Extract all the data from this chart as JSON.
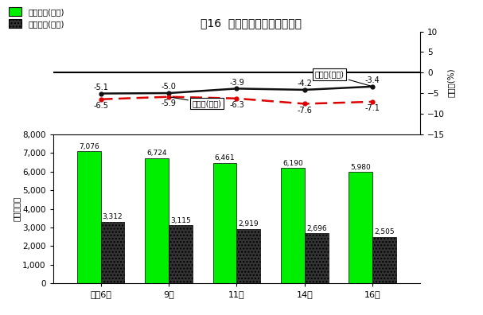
{
  "title": "図16  市郡別、事業所数の推移",
  "years": [
    "平成6年",
    "9年",
    "11年",
    "14年",
    "16年"
  ],
  "city_values": [
    7076,
    6724,
    6461,
    6190,
    5980
  ],
  "gun_values": [
    3312,
    3115,
    2919,
    2696,
    2505
  ],
  "city_yoy": [
    -6.5,
    -5.9,
    -6.3,
    -7.6,
    -7.1
  ],
  "gun_yoy": [
    -5.1,
    -5.0,
    -3.9,
    -4.2,
    -3.4
  ],
  "city_color": "#00ee00",
  "gun_color": "#333333",
  "line_city_color": "#dd0000",
  "line_gun_color": "#111111",
  "bar_ylim": [
    0,
    8000
  ],
  "bar_yticks": [
    0,
    1000,
    2000,
    3000,
    4000,
    5000,
    6000,
    7000,
    8000
  ],
  "line_ylim": [
    -15,
    10
  ],
  "line_yticks": [
    -15,
    -10,
    -5,
    0,
    5,
    10
  ],
  "ylabel_bar": "（事業所）",
  "ylabel_line": "前回比(%)",
  "legend_city": "事業所数(市部)",
  "legend_gun": "事業所数(郡部)",
  "annotation_city": "前回比(市部)",
  "annotation_gun": "前回比(郡部)"
}
